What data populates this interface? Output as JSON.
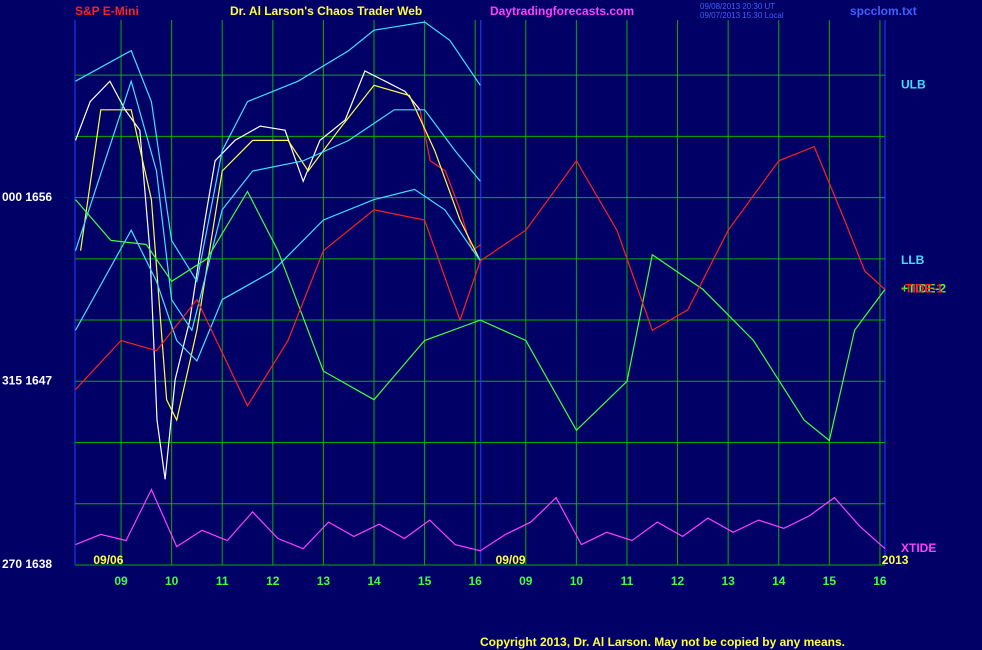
{
  "chart_data": {
    "type": "line",
    "title": "Dr. Al Larson's Chaos Trader Web",
    "instrument": "S&P E-Mini",
    "site": "Daytradingforecasts.com",
    "timestamps": [
      "09/08/2013 20:30 UT",
      "09/07/2013 15:30 Local"
    ],
    "file": "spcclom.txt",
    "copyright": "Copyright 2013, Dr. Al Larson. May not be copied by any means.",
    "date_labels": [
      {
        "x": 0.75,
        "label": "09/06"
      },
      {
        "x": 8.7,
        "label": "09/09"
      },
      {
        "x": 16.3,
        "label": "2013"
      }
    ],
    "xlim": [
      0.09,
      16.1
    ],
    "xticks": [
      {
        "value": 1,
        "label": "09"
      },
      {
        "value": 2,
        "label": "10"
      },
      {
        "value": 3,
        "label": "11"
      },
      {
        "value": 4,
        "label": "12"
      },
      {
        "value": 5,
        "label": "13"
      },
      {
        "value": 6,
        "label": "14"
      },
      {
        "value": 7,
        "label": "15"
      },
      {
        "value": 8,
        "label": "16"
      },
      {
        "value": 9,
        "label": "09"
      },
      {
        "value": 10,
        "label": "10"
      },
      {
        "value": 11,
        "label": "11"
      },
      {
        "value": 12,
        "label": "12"
      },
      {
        "value": 13,
        "label": "13"
      },
      {
        "value": 14,
        "label": "14"
      },
      {
        "value": 15,
        "label": "15"
      },
      {
        "value": 16,
        "label": "16"
      }
    ],
    "ylim": [
      1638,
      1664.7
    ],
    "yticks": [
      {
        "value": 1656,
        "label": "000 1656"
      },
      {
        "value": 1647,
        "label": "315 1647"
      },
      {
        "value": 1638,
        "label": "270 1638"
      }
    ],
    "ygrid": [
      1638,
      1641,
      1644,
      1647,
      1650,
      1653,
      1656,
      1659,
      1662
    ],
    "grid": true,
    "grid_color": "#00b000",
    "marker_x": 8.11,
    "series": [
      {
        "color": "#ffffff",
        "x": [
          0.1,
          0.39,
          0.78,
          1.08,
          1.37,
          1.57,
          1.71,
          1.87,
          2.07,
          2.36,
          2.66,
          2.86,
          3.25,
          3.75,
          4.24,
          4.6,
          4.93,
          5.43,
          5.82,
          6.22,
          6.61,
          6.91
        ],
        "values": [
          1658.8,
          1660.7,
          1661.7,
          1660.3,
          1659.3,
          1653.4,
          1645.1,
          1642.2,
          1647.1,
          1650.0,
          1654.9,
          1657.8,
          1658.8,
          1659.5,
          1659.3,
          1656.8,
          1658.8,
          1659.8,
          1662.2,
          1661.7,
          1661.2,
          1660.3
        ]
      },
      {
        "color": "#ff2020",
        "x": [
          6.91,
          7.11,
          7.41,
          7.7,
          7.94,
          8.11
        ],
        "values": [
          1660.3,
          1657.8,
          1657.3,
          1655.4,
          1653.4,
          1653.7
        ]
      },
      {
        "color": "#ffff40",
        "x": [
          0.2,
          0.6,
          1.2,
          1.6,
          1.9,
          2.1,
          2.5,
          3.0,
          3.6,
          4.3,
          4.7,
          5.3,
          6.0,
          6.7,
          7.2,
          7.7,
          8.1
        ],
        "values": [
          1653.4,
          1660.3,
          1660.3,
          1655.9,
          1646.1,
          1645.1,
          1649.5,
          1657.3,
          1658.8,
          1658.8,
          1657.3,
          1659.3,
          1661.5,
          1661.0,
          1658.3,
          1654.9,
          1652.9
        ]
      },
      {
        "name": "ULB",
        "color": "#40e0ff",
        "x": [
          0.1,
          1.2,
          1.6,
          2.0,
          2.5,
          3.0,
          3.5,
          4.5,
          5.5,
          6.0,
          7.0,
          7.5,
          8.1
        ],
        "values": [
          1661.7,
          1663.2,
          1660.7,
          1653.9,
          1651.9,
          1658.3,
          1660.7,
          1661.7,
          1663.2,
          1664.2,
          1664.6,
          1663.7,
          1661.5
        ]
      },
      {
        "color": "#40e0ff",
        "x": [
          0.1,
          1.2,
          1.7,
          2.0,
          2.4,
          3.0,
          3.6,
          4.6,
          5.5,
          6.4,
          7.0,
          7.6,
          8.1
        ],
        "values": [
          1653.4,
          1661.7,
          1657.3,
          1651.0,
          1649.5,
          1655.4,
          1657.3,
          1657.8,
          1658.8,
          1660.3,
          1660.3,
          1658.3,
          1656.8
        ]
      },
      {
        "name": "LLB",
        "color": "#40e0ff",
        "x": [
          0.1,
          1.2,
          1.7,
          2.1,
          2.5,
          3.0,
          4.0,
          5.0,
          6.0,
          6.8,
          7.4,
          8.1
        ],
        "values": [
          1649.5,
          1654.4,
          1651.9,
          1649.0,
          1648.0,
          1651.0,
          1652.4,
          1654.9,
          1655.9,
          1656.4,
          1655.4,
          1652.9
        ]
      },
      {
        "name": "+TIDE-2",
        "color": "#40ff40",
        "x": [
          0.1,
          0.8,
          1.5,
          2.0,
          2.7,
          3.5,
          4.1,
          5.0,
          6.0,
          7.0,
          8.1,
          9.0,
          10.0,
          11.0,
          11.5,
          12.5,
          13.5,
          14.5,
          15.0,
          15.5,
          16.1
        ],
        "values": [
          1655.9,
          1653.9,
          1653.7,
          1651.9,
          1653.0,
          1656.3,
          1653.4,
          1647.5,
          1646.1,
          1649.0,
          1650.0,
          1649.0,
          1644.6,
          1647.0,
          1653.2,
          1651.5,
          1649.0,
          1645.1,
          1644.1,
          1649.5,
          1651.5
        ]
      },
      {
        "name": "-TIDE-1",
        "color": "#ff2020",
        "x": [
          0.1,
          1.0,
          1.7,
          2.5,
          3.5,
          4.3,
          5.0,
          6.0,
          7.0,
          7.7,
          8.1,
          9.0,
          10.0,
          10.8,
          11.5,
          12.2,
          13.0,
          14.0,
          14.7,
          15.3,
          15.7,
          16.1
        ],
        "values": [
          1646.6,
          1649.0,
          1648.5,
          1651.0,
          1645.8,
          1649.0,
          1653.4,
          1655.4,
          1654.9,
          1650.0,
          1652.9,
          1654.4,
          1657.8,
          1654.4,
          1649.5,
          1650.5,
          1654.4,
          1657.8,
          1658.5,
          1654.9,
          1652.4,
          1651.5
        ]
      },
      {
        "name": "XTIDE",
        "color": "#ff40ff",
        "x": [
          0.1,
          0.6,
          1.1,
          1.6,
          2.1,
          2.6,
          3.1,
          3.6,
          4.1,
          4.6,
          5.1,
          5.6,
          6.1,
          6.6,
          7.1,
          7.6,
          8.1,
          8.6,
          9.1,
          9.6,
          10.1,
          10.6,
          11.1,
          11.6,
          12.1,
          12.6,
          13.1,
          13.6,
          14.1,
          14.6,
          15.1,
          15.6,
          16.1
        ],
        "values": [
          1639.0,
          1639.5,
          1639.2,
          1641.7,
          1638.9,
          1639.7,
          1639.2,
          1640.6,
          1639.3,
          1638.8,
          1640.1,
          1639.4,
          1640.0,
          1639.3,
          1640.2,
          1639.0,
          1638.7,
          1639.5,
          1640.1,
          1641.3,
          1639.0,
          1639.6,
          1639.2,
          1640.1,
          1639.4,
          1640.3,
          1639.6,
          1640.2,
          1639.8,
          1640.4,
          1641.3,
          1639.9,
          1638.8
        ]
      }
    ]
  }
}
